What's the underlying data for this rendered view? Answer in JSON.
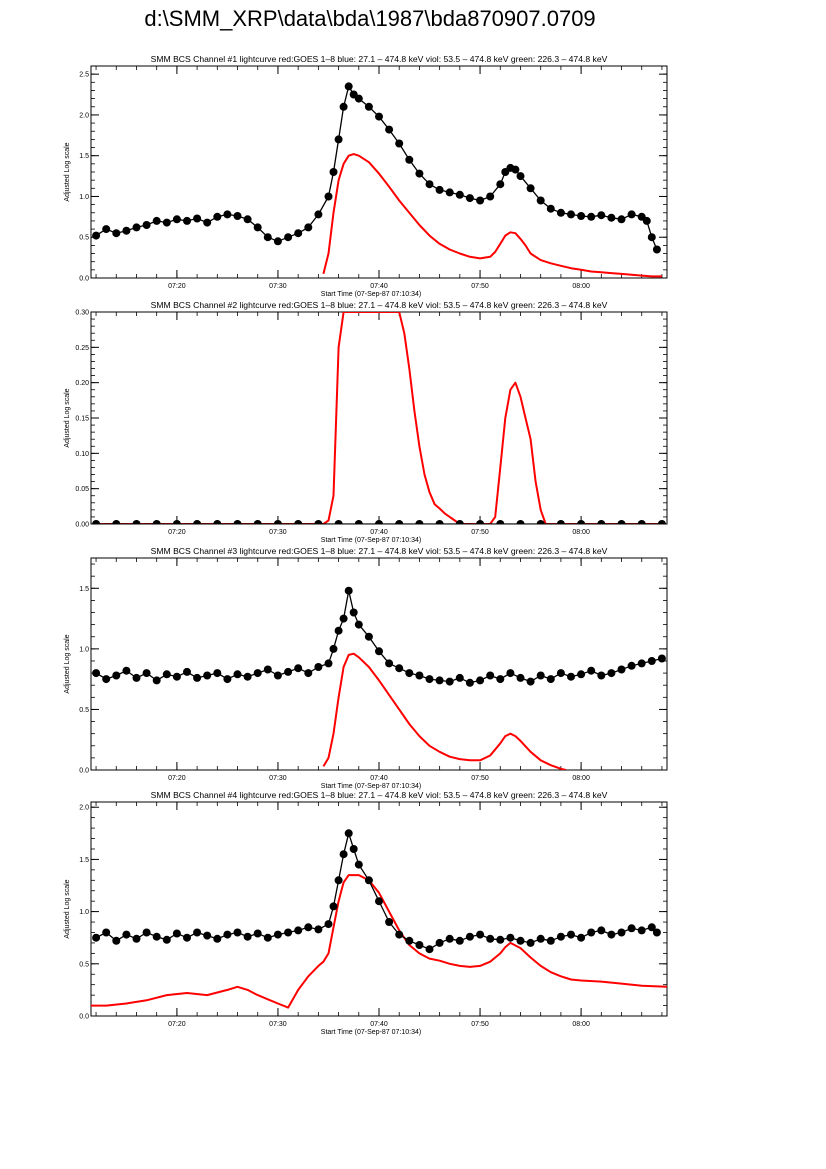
{
  "page": {
    "title": "d:\\SMM_XRP\\data\\bda\\1987\\bda870907.0709"
  },
  "colors": {
    "goes": "#ff0000",
    "bcs": "#000000",
    "axis": "#000000",
    "background": "#ffffff"
  },
  "chart_data": [
    {
      "type": "line",
      "title": "SMM BCS Channel #1 lightcurve  red:GOES 1–8  blue: 27.1 – 474.8 keV  viol: 53.5 – 474.8 keV  green: 226.3 – 474.8 keV",
      "xlabel": "Start Time (07-Sep-87 07:10:34)",
      "ylabel": "Adjusted Log scale",
      "xlim": [
        11.5,
        68.5
      ],
      "ylim": [
        0,
        2.6
      ],
      "yticks": [
        0,
        0.5,
        1.0,
        1.5,
        2.0,
        2.5
      ],
      "ytick_labels": [
        "0.0",
        "0.5",
        "1.0",
        "1.5",
        "2.0",
        "2.5"
      ],
      "xticks": [
        20,
        30,
        40,
        50,
        60
      ],
      "xtick_labels": [
        "07:20",
        "07:30",
        "07:40",
        "07:50",
        "08:00"
      ],
      "series": [
        {
          "name": "GOES 1-8",
          "style": "line",
          "color": "#ff0000",
          "x": [
            34.5,
            35.0,
            35.5,
            36.0,
            36.5,
            37.0,
            37.5,
            38.0,
            39.0,
            40.0,
            41.0,
            42.0,
            43.0,
            44.0,
            45.0,
            46.0,
            47.0,
            48.0,
            49.0,
            50.0,
            51.0,
            51.5,
            52.0,
            52.5,
            53.0,
            53.5,
            54.0,
            54.5,
            55.0,
            56.0,
            57.0,
            58.0,
            59.0,
            60.0,
            61.0,
            62.0,
            63.0,
            64.0,
            65.0,
            66.0,
            67.0,
            68.0
          ],
          "values": [
            0.05,
            0.3,
            0.8,
            1.2,
            1.4,
            1.5,
            1.52,
            1.5,
            1.42,
            1.28,
            1.12,
            0.95,
            0.8,
            0.65,
            0.52,
            0.42,
            0.35,
            0.3,
            0.26,
            0.24,
            0.26,
            0.32,
            0.42,
            0.52,
            0.56,
            0.55,
            0.48,
            0.4,
            0.3,
            0.22,
            0.18,
            0.15,
            0.12,
            0.1,
            0.08,
            0.07,
            0.06,
            0.05,
            0.04,
            0.03,
            0.02,
            0.02
          ]
        },
        {
          "name": "BCS Channel 1",
          "style": "line-markers",
          "color": "#000000",
          "x": [
            12,
            13,
            14,
            15,
            16,
            17,
            18,
            19,
            20,
            21,
            22,
            23,
            24,
            25,
            26,
            27,
            28,
            29,
            30,
            31,
            32,
            33,
            34,
            35,
            35.5,
            36,
            36.5,
            37,
            37.5,
            38,
            39,
            40,
            41,
            42,
            43,
            44,
            45,
            46,
            47,
            48,
            49,
            50,
            51,
            52,
            52.5,
            53,
            53.5,
            54,
            55,
            56,
            57,
            58,
            59,
            60,
            61,
            62,
            63,
            64,
            65,
            66,
            66.5,
            67,
            67.5
          ],
          "values": [
            0.52,
            0.6,
            0.55,
            0.58,
            0.62,
            0.65,
            0.7,
            0.68,
            0.72,
            0.7,
            0.73,
            0.68,
            0.75,
            0.78,
            0.76,
            0.72,
            0.62,
            0.5,
            0.45,
            0.5,
            0.55,
            0.62,
            0.78,
            1.0,
            1.3,
            1.7,
            2.1,
            2.35,
            2.25,
            2.2,
            2.1,
            1.98,
            1.82,
            1.65,
            1.45,
            1.28,
            1.15,
            1.08,
            1.05,
            1.02,
            0.98,
            0.95,
            1.0,
            1.15,
            1.3,
            1.35,
            1.33,
            1.25,
            1.1,
            0.95,
            0.85,
            0.8,
            0.78,
            0.76,
            0.75,
            0.77,
            0.74,
            0.72,
            0.78,
            0.75,
            0.7,
            0.5,
            0.35
          ]
        }
      ]
    },
    {
      "type": "line",
      "title": "SMM BCS Channel #2 lightcurve  red:GOES 1–8  blue: 27.1 – 474.8 keV  viol: 53.5 – 474.8 keV  green: 226.3 – 474.8 keV",
      "xlabel": "Start Time (07-Sep-87 07:10:34)",
      "ylabel": "Adjusted Log scale",
      "xlim": [
        11.5,
        68.5
      ],
      "ylim": [
        0,
        0.3
      ],
      "yticks": [
        0,
        0.05,
        0.1,
        0.15,
        0.2,
        0.25,
        0.3
      ],
      "ytick_labels": [
        "0.00",
        "0.05",
        "0.10",
        "0.15",
        "0.20",
        "0.25",
        "0.30"
      ],
      "xticks": [
        20,
        30,
        40,
        50,
        60
      ],
      "xtick_labels": [
        "07:20",
        "07:30",
        "07:40",
        "07:50",
        "08:00"
      ],
      "series": [
        {
          "name": "GOES 1-8",
          "style": "line",
          "color": "#ff0000",
          "x": [
            12,
            34.5,
            35.0,
            35.5,
            36.0,
            36.5,
            37.0,
            38.0,
            40.0,
            41.0,
            42.0,
            42.5,
            43.0,
            43.5,
            44.0,
            44.5,
            45.0,
            45.5,
            46.0,
            46.5,
            47.0,
            47.5,
            48.0,
            49.0,
            50.0,
            51.0,
            51.5,
            52.0,
            52.5,
            53.0,
            53.5,
            54.0,
            54.5,
            55.0,
            55.5,
            56.0,
            56.5,
            57.0,
            68.0
          ],
          "values": [
            0,
            0,
            0.005,
            0.04,
            0.25,
            0.3,
            0.3,
            0.3,
            0.3,
            0.3,
            0.3,
            0.27,
            0.22,
            0.16,
            0.11,
            0.07,
            0.045,
            0.028,
            0.022,
            0.015,
            0.01,
            0.005,
            0,
            0,
            0,
            0,
            0.01,
            0.08,
            0.15,
            0.19,
            0.2,
            0.18,
            0.15,
            0.12,
            0.06,
            0.02,
            0,
            0,
            0
          ]
        },
        {
          "name": "BCS Channel 2",
          "style": "line-markers",
          "color": "#000000",
          "x": [
            12,
            14,
            16,
            18,
            20,
            22,
            24,
            26,
            28,
            30,
            32,
            34,
            36,
            38,
            40,
            42,
            44,
            46,
            48,
            50,
            52,
            54,
            56,
            58,
            60,
            62,
            64,
            66,
            68
          ],
          "values": [
            0,
            0,
            0,
            0,
            0,
            0,
            0,
            0,
            0,
            0,
            0,
            0,
            0,
            0,
            0,
            0,
            0,
            0,
            0,
            0,
            0,
            0,
            0,
            0,
            0,
            0,
            0,
            0,
            0
          ]
        }
      ]
    },
    {
      "type": "line",
      "title": "SMM BCS Channel #3 lightcurve  red:GOES 1–8  blue: 27.1 – 474.8 keV  viol: 53.5 – 474.8 keV  green: 226.3 – 474.8 keV",
      "xlabel": "Start Time (07-Sep-87 07:10:34)",
      "ylabel": "Adjusted Log scale",
      "xlim": [
        11.5,
        68.5
      ],
      "ylim": [
        0,
        1.75
      ],
      "yticks": [
        0,
        0.5,
        1.0,
        1.5
      ],
      "ytick_labels": [
        "0.0",
        "0.5",
        "1.0",
        "1.5"
      ],
      "xticks": [
        20,
        30,
        40,
        50,
        60
      ],
      "xtick_labels": [
        "07:20",
        "07:30",
        "07:40",
        "07:50",
        "08:00"
      ],
      "series": [
        {
          "name": "GOES 1-8",
          "style": "line",
          "color": "#ff0000",
          "x": [
            34.5,
            35.0,
            35.5,
            36.0,
            36.5,
            37.0,
            37.5,
            38.0,
            39.0,
            40.0,
            41.0,
            42.0,
            43.0,
            44.0,
            45.0,
            46.0,
            47.0,
            48.0,
            49.0,
            50.0,
            51.0,
            52.0,
            52.5,
            53.0,
            53.5,
            54.0,
            55.0,
            56.0,
            57.0,
            58.0,
            58.5
          ],
          "values": [
            0.03,
            0.1,
            0.3,
            0.6,
            0.85,
            0.95,
            0.96,
            0.93,
            0.85,
            0.74,
            0.62,
            0.5,
            0.38,
            0.28,
            0.2,
            0.15,
            0.11,
            0.09,
            0.08,
            0.08,
            0.12,
            0.22,
            0.28,
            0.3,
            0.28,
            0.24,
            0.15,
            0.08,
            0.04,
            0.01,
            0
          ]
        },
        {
          "name": "BCS Channel 3",
          "style": "line-markers",
          "color": "#000000",
          "x": [
            12,
            13,
            14,
            15,
            16,
            17,
            18,
            19,
            20,
            21,
            22,
            23,
            24,
            25,
            26,
            27,
            28,
            29,
            30,
            31,
            32,
            33,
            34,
            35,
            35.5,
            36,
            36.5,
            37,
            37.5,
            38,
            39,
            40,
            41,
            42,
            43,
            44,
            45,
            46,
            47,
            48,
            49,
            50,
            51,
            52,
            53,
            54,
            55,
            56,
            57,
            58,
            59,
            60,
            61,
            62,
            63,
            64,
            65,
            66,
            67,
            68
          ],
          "values": [
            0.8,
            0.75,
            0.78,
            0.82,
            0.76,
            0.8,
            0.74,
            0.79,
            0.77,
            0.81,
            0.76,
            0.78,
            0.8,
            0.75,
            0.79,
            0.77,
            0.8,
            0.83,
            0.78,
            0.81,
            0.84,
            0.8,
            0.85,
            0.88,
            1.0,
            1.15,
            1.25,
            1.48,
            1.3,
            1.2,
            1.1,
            0.98,
            0.88,
            0.84,
            0.8,
            0.78,
            0.75,
            0.74,
            0.73,
            0.76,
            0.72,
            0.74,
            0.78,
            0.75,
            0.8,
            0.76,
            0.73,
            0.78,
            0.75,
            0.8,
            0.77,
            0.79,
            0.82,
            0.78,
            0.8,
            0.83,
            0.86,
            0.88,
            0.9,
            0.92
          ]
        }
      ]
    },
    {
      "type": "line",
      "title": "SMM BCS Channel #4 lightcurve  red:GOES 1–8  blue: 27.1 – 474.8 keV  viol: 53.5 – 474.8 keV  green: 226.3 – 474.8 keV",
      "xlabel": "Start Time (07-Sep-87 07:10:34)",
      "ylabel": "Adjusted Log scale",
      "xlim": [
        11.5,
        68.5
      ],
      "ylim": [
        0,
        2.05
      ],
      "yticks": [
        0,
        0.5,
        1.0,
        1.5,
        2.0
      ],
      "ytick_labels": [
        "0.0",
        "0.5",
        "1.0",
        "1.5",
        "2.0"
      ],
      "xticks": [
        20,
        30,
        40,
        50,
        60
      ],
      "xtick_labels": [
        "07:20",
        "07:30",
        "07:40",
        "07:50",
        "08:00"
      ],
      "series": [
        {
          "name": "GOES 1-8",
          "style": "line",
          "color": "#ff0000",
          "x": [
            11.5,
            13,
            15,
            17,
            19,
            21,
            23,
            25,
            26,
            27,
            28,
            29,
            30,
            31,
            32,
            33,
            34,
            34.5,
            35,
            35.5,
            36,
            36.5,
            37,
            38,
            39,
            40,
            41,
            42,
            43,
            44,
            45,
            46,
            47,
            48,
            49,
            50,
            51,
            52,
            52.5,
            53,
            54,
            55,
            56,
            57,
            58,
            59,
            60,
            62,
            64,
            66,
            68.5
          ],
          "values": [
            0.1,
            0.1,
            0.12,
            0.15,
            0.2,
            0.22,
            0.2,
            0.25,
            0.28,
            0.25,
            0.2,
            0.16,
            0.12,
            0.08,
            0.25,
            0.38,
            0.48,
            0.52,
            0.6,
            0.85,
            1.1,
            1.28,
            1.35,
            1.35,
            1.3,
            1.18,
            1.0,
            0.82,
            0.68,
            0.6,
            0.55,
            0.53,
            0.5,
            0.48,
            0.47,
            0.48,
            0.52,
            0.6,
            0.66,
            0.7,
            0.65,
            0.56,
            0.48,
            0.42,
            0.38,
            0.35,
            0.34,
            0.33,
            0.31,
            0.29,
            0.28
          ]
        },
        {
          "name": "BCS Channel 4",
          "style": "line-markers",
          "color": "#000000",
          "x": [
            12,
            13,
            14,
            15,
            16,
            17,
            18,
            19,
            20,
            21,
            22,
            23,
            24,
            25,
            26,
            27,
            28,
            29,
            30,
            31,
            32,
            33,
            34,
            35,
            35.5,
            36,
            36.5,
            37,
            37.5,
            38,
            39,
            40,
            41,
            42,
            43,
            44,
            45,
            46,
            47,
            48,
            49,
            50,
            51,
            52,
            53,
            54,
            55,
            56,
            57,
            58,
            59,
            60,
            61,
            62,
            63,
            64,
            65,
            66,
            67,
            67.5
          ],
          "values": [
            0.75,
            0.8,
            0.72,
            0.78,
            0.74,
            0.8,
            0.76,
            0.73,
            0.79,
            0.75,
            0.8,
            0.77,
            0.74,
            0.78,
            0.8,
            0.76,
            0.79,
            0.75,
            0.78,
            0.8,
            0.82,
            0.85,
            0.83,
            0.88,
            1.05,
            1.3,
            1.55,
            1.75,
            1.6,
            1.45,
            1.3,
            1.1,
            0.9,
            0.78,
            0.72,
            0.68,
            0.64,
            0.7,
            0.74,
            0.72,
            0.76,
            0.78,
            0.74,
            0.73,
            0.75,
            0.72,
            0.7,
            0.74,
            0.72,
            0.76,
            0.78,
            0.75,
            0.8,
            0.82,
            0.78,
            0.8,
            0.84,
            0.82,
            0.85,
            0.8
          ]
        }
      ]
    }
  ]
}
